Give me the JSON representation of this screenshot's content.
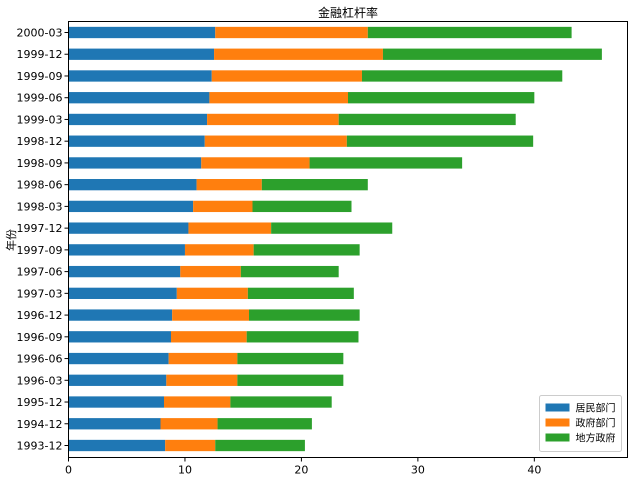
{
  "chart_data": {
    "type": "bar",
    "orientation": "horizontal",
    "stacked": true,
    "title": "金融杠杆率",
    "xlabel": "",
    "ylabel": "年份",
    "xlim": [
      0,
      48
    ],
    "xticks": [
      0,
      10,
      20,
      30,
      40
    ],
    "grid": false,
    "legend_position": "bottom-right",
    "categories": [
      "1993-12",
      "1994-12",
      "1995-12",
      "1996-03",
      "1996-06",
      "1996-09",
      "1996-12",
      "1997-03",
      "1997-06",
      "1997-09",
      "1997-12",
      "1998-03",
      "1998-06",
      "1998-09",
      "1998-12",
      "1999-03",
      "1999-06",
      "1999-09",
      "1999-12",
      "2000-03"
    ],
    "series": [
      {
        "name": "居民部门",
        "color": "#1f77b4",
        "values": [
          8.3,
          7.9,
          8.2,
          8.4,
          8.6,
          8.8,
          8.9,
          9.3,
          9.6,
          10.0,
          10.3,
          10.7,
          11.0,
          11.4,
          11.7,
          11.9,
          12.1,
          12.3,
          12.5,
          12.6
        ]
      },
      {
        "name": "政府部门",
        "color": "#ff7f0e",
        "values": [
          4.3,
          4.9,
          5.7,
          6.1,
          5.9,
          6.5,
          6.6,
          6.1,
          5.2,
          5.9,
          7.1,
          5.1,
          5.6,
          9.3,
          12.2,
          11.3,
          11.9,
          12.9,
          14.5,
          13.1
        ]
      },
      {
        "name": "地方政府",
        "color": "#2ca02c",
        "values": [
          7.7,
          8.1,
          8.7,
          9.1,
          9.1,
          9.6,
          9.5,
          9.1,
          8.4,
          9.1,
          10.4,
          8.5,
          9.1,
          13.1,
          16.0,
          15.2,
          16.0,
          17.2,
          18.8,
          17.5
        ]
      }
    ]
  }
}
